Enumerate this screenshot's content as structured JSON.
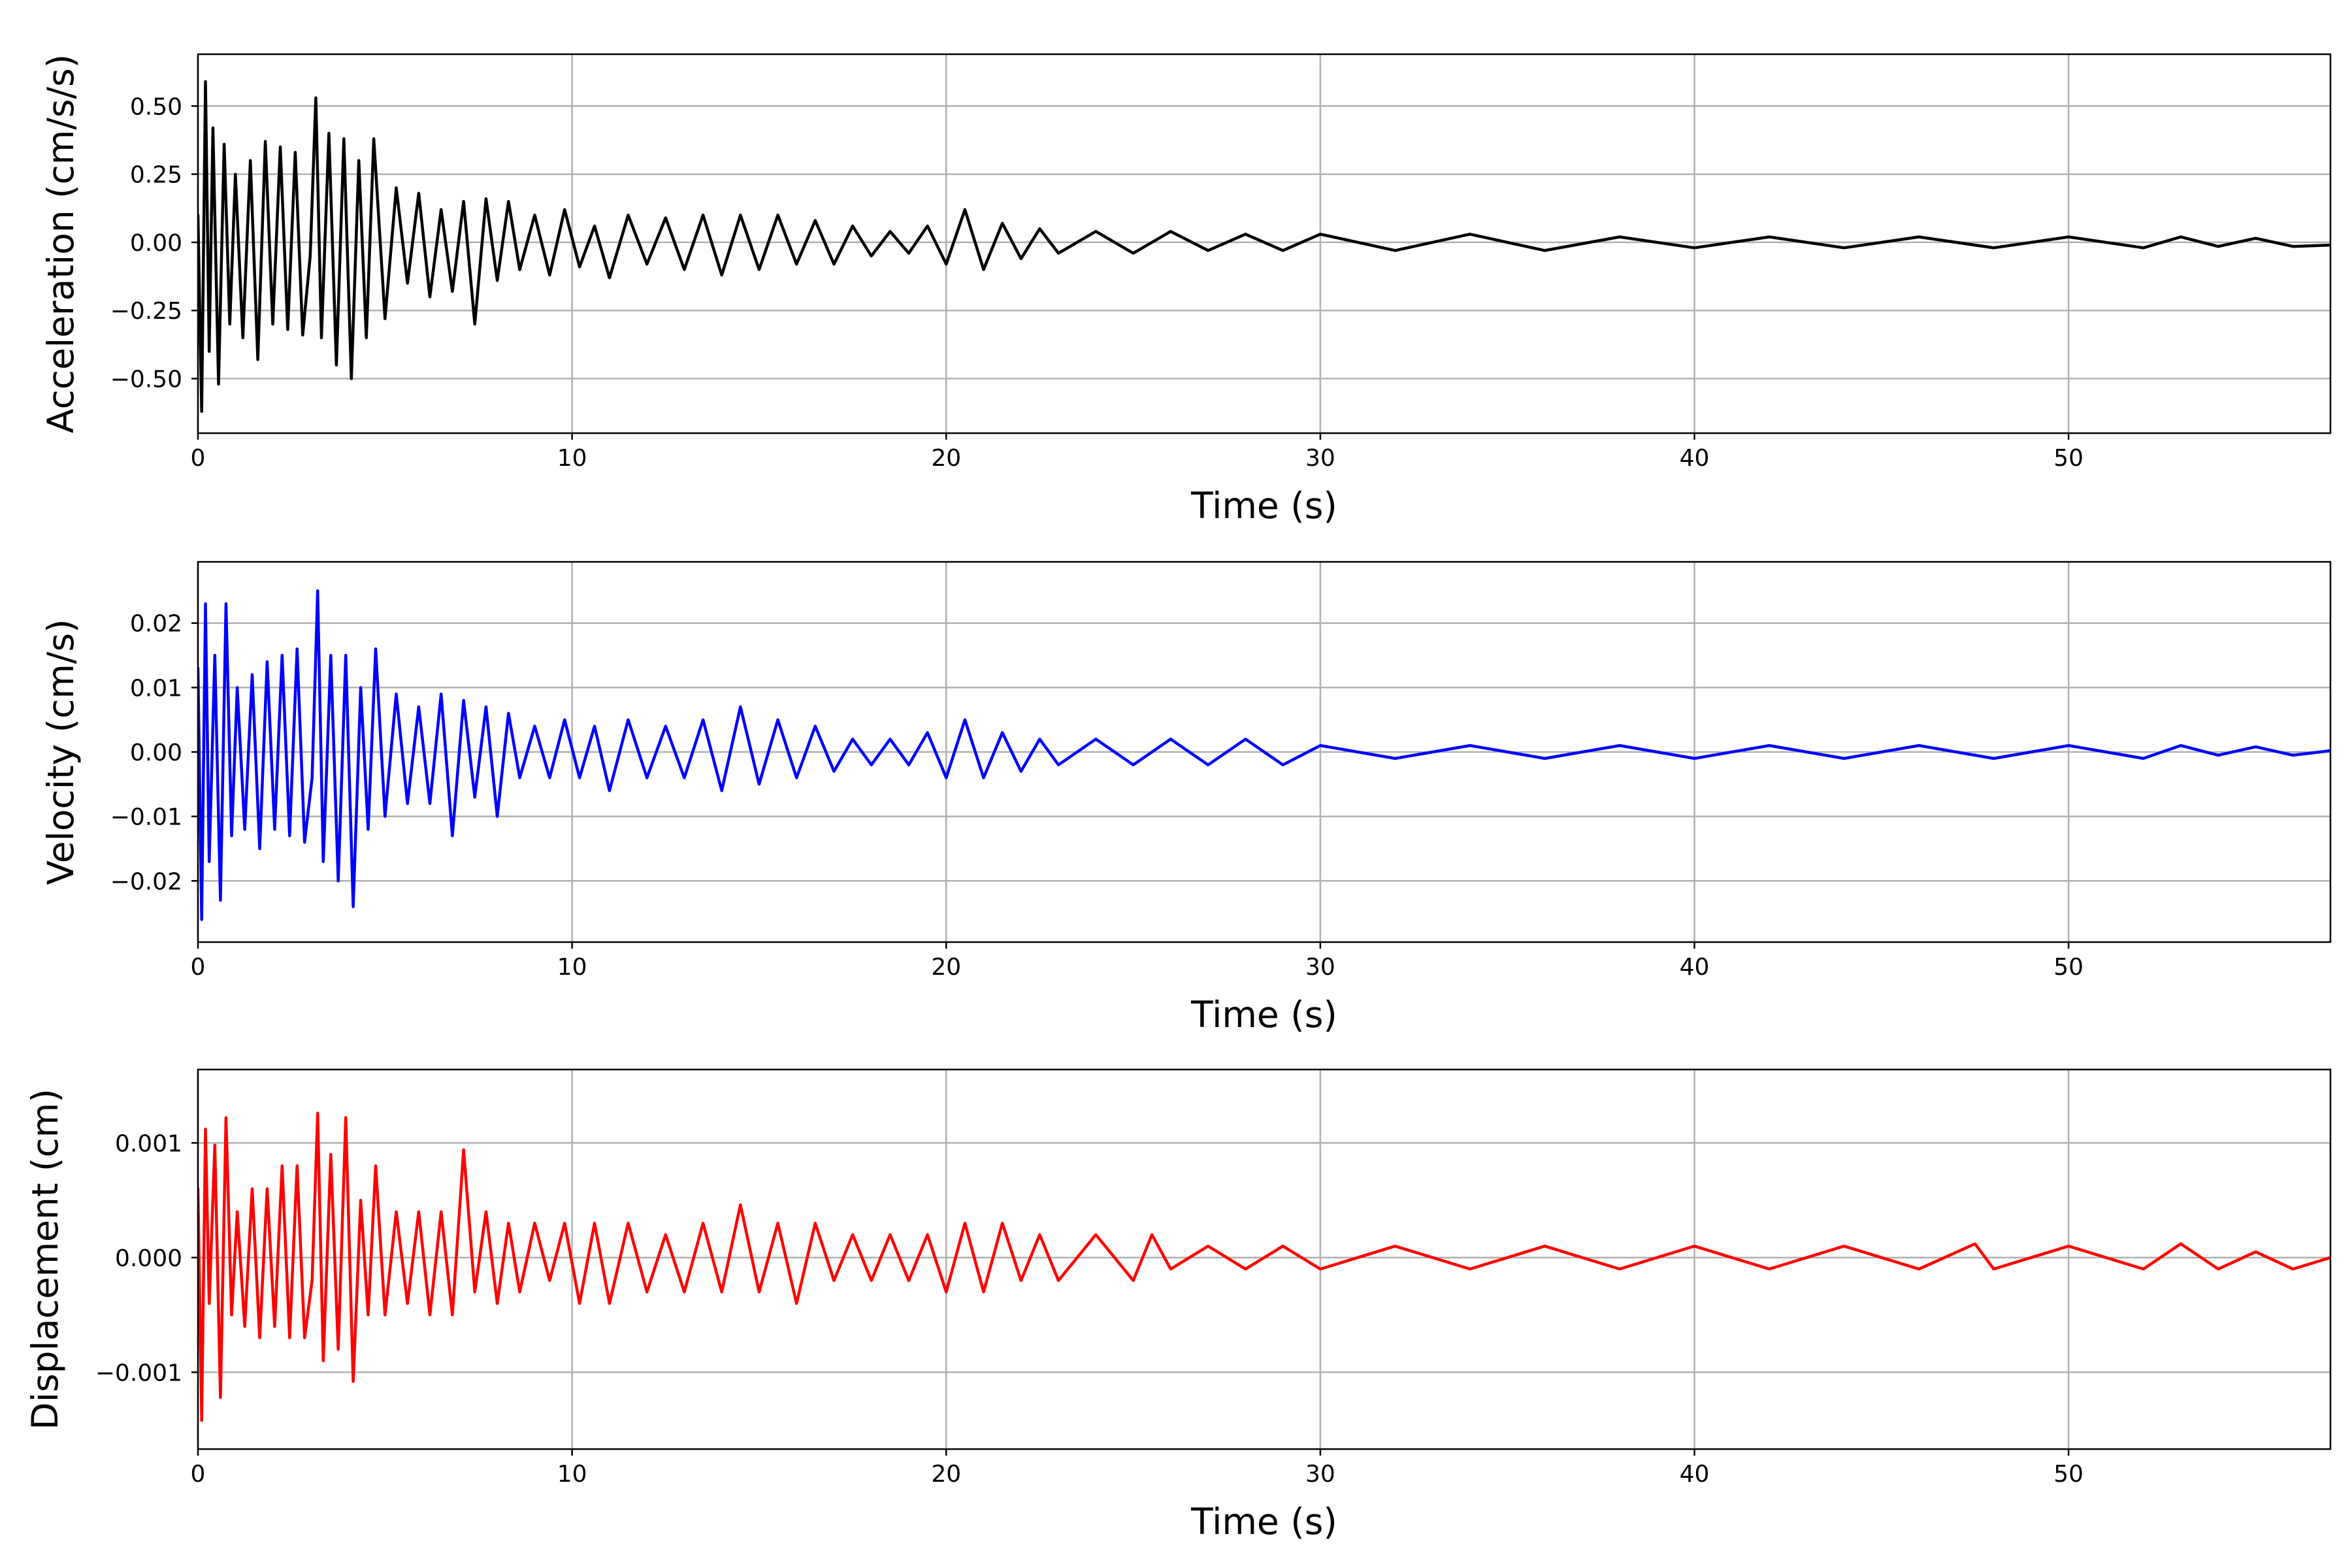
{
  "chart_data": [
    {
      "type": "line",
      "xlabel": "Time (s)",
      "ylabel": "Acceleration (cm/s/s)",
      "xlim": [
        0,
        57
      ],
      "ylim": [
        -0.7,
        0.69
      ],
      "xticks": [
        0,
        10,
        20,
        30,
        40,
        50
      ],
      "xtick_labels": [
        "0",
        "10",
        "20",
        "30",
        "40",
        "50"
      ],
      "yticks": [
        -0.5,
        -0.25,
        0,
        0.25,
        0.5
      ],
      "ytick_labels": [
        "−0.50",
        "−0.25",
        "0.00",
        "0.25",
        "0.50"
      ],
      "grid": true,
      "color": "#000000",
      "series": [
        {
          "x": [
            0.0,
            0.1,
            0.2,
            0.3,
            0.4,
            0.55,
            0.7,
            0.85,
            1.0,
            1.2,
            1.4,
            1.6,
            1.8,
            2.0,
            2.2,
            2.4,
            2.6,
            2.8,
            3.0,
            3.15,
            3.3,
            3.5,
            3.7,
            3.9,
            4.1,
            4.3,
            4.5,
            4.7,
            5.0,
            5.3,
            5.6,
            5.9,
            6.2,
            6.5,
            6.8,
            7.1,
            7.4,
            7.7,
            8.0,
            8.3,
            8.6,
            9.0,
            9.4,
            9.8,
            10.2,
            10.6,
            11.0,
            11.5,
            12.0,
            12.5,
            13.0,
            13.5,
            14.0,
            14.5,
            15.0,
            15.5,
            16.0,
            16.5,
            17.0,
            17.5,
            18.0,
            18.5,
            19.0,
            19.5,
            20.0,
            20.5,
            21.0,
            21.5,
            22.0,
            22.5,
            23.0,
            24.0,
            25.0,
            26.0,
            27.0,
            28.0,
            29.0,
            30.0,
            32.0,
            34.0,
            36.0,
            38.0,
            40.0,
            42.0,
            44.0,
            46.0,
            48.0,
            50.0,
            52.0,
            53.0,
            54.0,
            55.0,
            56.0,
            57.0
          ],
          "y": [
            0.1,
            -0.62,
            0.59,
            -0.4,
            0.42,
            -0.52,
            0.36,
            -0.3,
            0.25,
            -0.35,
            0.3,
            -0.43,
            0.37,
            -0.3,
            0.35,
            -0.32,
            0.33,
            -0.34,
            -0.05,
            0.53,
            -0.35,
            0.4,
            -0.45,
            0.38,
            -0.5,
            0.3,
            -0.35,
            0.38,
            -0.28,
            0.2,
            -0.15,
            0.18,
            -0.2,
            0.12,
            -0.18,
            0.15,
            -0.3,
            0.16,
            -0.14,
            0.15,
            -0.1,
            0.1,
            -0.12,
            0.12,
            -0.09,
            0.06,
            -0.13,
            0.1,
            -0.08,
            0.09,
            -0.1,
            0.1,
            -0.12,
            0.1,
            -0.1,
            0.1,
            -0.08,
            0.08,
            -0.08,
            0.06,
            -0.05,
            0.04,
            -0.04,
            0.06,
            -0.08,
            0.12,
            -0.1,
            0.07,
            -0.06,
            0.05,
            -0.04,
            0.04,
            -0.04,
            0.04,
            -0.03,
            0.03,
            -0.03,
            0.03,
            -0.03,
            0.03,
            -0.03,
            0.02,
            -0.02,
            0.02,
            -0.02,
            0.02,
            -0.02,
            0.02,
            -0.02,
            0.02,
            -0.015,
            0.015,
            -0.015,
            -0.01
          ]
        }
      ]
    },
    {
      "type": "line",
      "xlabel": "Time (s)",
      "ylabel": "Velocity (cm/s)",
      "xlim": [
        0,
        57
      ],
      "ylim": [
        -0.0295,
        0.0295
      ],
      "xticks": [
        0,
        10,
        20,
        30,
        40,
        50
      ],
      "xtick_labels": [
        "0",
        "10",
        "20",
        "30",
        "40",
        "50"
      ],
      "yticks": [
        -0.02,
        -0.01,
        0,
        0.01,
        0.02
      ],
      "ytick_labels": [
        "−0.02",
        "−0.01",
        "0.00",
        "0.01",
        "0.02"
      ],
      "grid": true,
      "color": "#0000ff",
      "series": [
        {
          "x": [
            0.0,
            0.1,
            0.2,
            0.3,
            0.45,
            0.6,
            0.75,
            0.9,
            1.05,
            1.25,
            1.45,
            1.65,
            1.85,
            2.05,
            2.25,
            2.45,
            2.65,
            2.85,
            3.05,
            3.2,
            3.35,
            3.55,
            3.75,
            3.95,
            4.15,
            4.35,
            4.55,
            4.75,
            5.0,
            5.3,
            5.6,
            5.9,
            6.2,
            6.5,
            6.8,
            7.1,
            7.4,
            7.7,
            8.0,
            8.3,
            8.6,
            9.0,
            9.4,
            9.8,
            10.2,
            10.6,
            11.0,
            11.5,
            12.0,
            12.5,
            13.0,
            13.5,
            14.0,
            14.5,
            15.0,
            15.5,
            16.0,
            16.5,
            17.0,
            17.5,
            18.0,
            18.5,
            19.0,
            19.5,
            20.0,
            20.5,
            21.0,
            21.5,
            22.0,
            22.5,
            23.0,
            24.0,
            25.0,
            26.0,
            27.0,
            28.0,
            29.0,
            30.0,
            32.0,
            34.0,
            36.0,
            38.0,
            40.0,
            42.0,
            44.0,
            46.0,
            48.0,
            50.0,
            52.0,
            53.0,
            54.0,
            55.0,
            56.0,
            57.0
          ],
          "y": [
            0.013,
            -0.026,
            0.023,
            -0.017,
            0.015,
            -0.023,
            0.023,
            -0.013,
            0.01,
            -0.012,
            0.012,
            -0.015,
            0.014,
            -0.012,
            0.015,
            -0.013,
            0.016,
            -0.014,
            -0.004,
            0.025,
            -0.017,
            0.015,
            -0.02,
            0.015,
            -0.024,
            0.01,
            -0.012,
            0.016,
            -0.01,
            0.009,
            -0.008,
            0.007,
            -0.008,
            0.009,
            -0.013,
            0.008,
            -0.007,
            0.007,
            -0.01,
            0.006,
            -0.004,
            0.004,
            -0.004,
            0.005,
            -0.004,
            0.004,
            -0.006,
            0.005,
            -0.004,
            0.004,
            -0.004,
            0.005,
            -0.006,
            0.007,
            -0.005,
            0.005,
            -0.004,
            0.004,
            -0.003,
            0.002,
            -0.002,
            0.002,
            -0.002,
            0.003,
            -0.004,
            0.005,
            -0.004,
            0.003,
            -0.003,
            0.002,
            -0.002,
            0.002,
            -0.002,
            0.002,
            -0.002,
            0.002,
            -0.002,
            0.001,
            -0.001,
            0.001,
            -0.001,
            0.001,
            -0.001,
            0.001,
            -0.001,
            0.001,
            -0.001,
            0.001,
            -0.001,
            0.001,
            -0.0005,
            0.0008,
            -0.0005,
            0.0002
          ]
        }
      ]
    },
    {
      "type": "line",
      "xlabel": "Time (s)",
      "ylabel": "Displacement (cm)",
      "xlim": [
        0,
        57
      ],
      "ylim": [
        -0.00167,
        0.00164
      ],
      "xticks": [
        0,
        10,
        20,
        30,
        40,
        50
      ],
      "xtick_labels": [
        "0",
        "10",
        "20",
        "30",
        "40",
        "50"
      ],
      "yticks": [
        -0.001,
        0,
        0.001
      ],
      "ytick_labels": [
        "−0.001",
        "0.000",
        "0.001"
      ],
      "grid": true,
      "color": "#ff0000",
      "series": [
        {
          "x": [
            0.0,
            0.1,
            0.2,
            0.3,
            0.45,
            0.6,
            0.75,
            0.9,
            1.05,
            1.25,
            1.45,
            1.65,
            1.85,
            2.05,
            2.25,
            2.45,
            2.65,
            2.85,
            3.05,
            3.2,
            3.35,
            3.55,
            3.75,
            3.95,
            4.15,
            4.35,
            4.55,
            4.75,
            5.0,
            5.3,
            5.6,
            5.9,
            6.2,
            6.5,
            6.8,
            7.1,
            7.4,
            7.7,
            8.0,
            8.3,
            8.6,
            9.0,
            9.4,
            9.8,
            10.2,
            10.6,
            11.0,
            11.5,
            12.0,
            12.5,
            13.0,
            13.5,
            14.0,
            14.5,
            15.0,
            15.5,
            16.0,
            16.5,
            17.0,
            17.5,
            18.0,
            18.5,
            19.0,
            19.5,
            20.0,
            20.5,
            21.0,
            21.5,
            22.0,
            22.5,
            23.0,
            24.0,
            25.0,
            25.5,
            26.0,
            27.0,
            28.0,
            29.0,
            30.0,
            32.0,
            34.0,
            36.0,
            38.0,
            40.0,
            42.0,
            44.0,
            46.0,
            47.5,
            48.0,
            50.0,
            52.0,
            53.0,
            54.0,
            55.0,
            56.0,
            57.0
          ],
          "y": [
            0.0006,
            -0.00142,
            0.00112,
            -0.0004,
            0.00098,
            -0.00122,
            0.00122,
            -0.0005,
            0.0004,
            -0.0006,
            0.0006,
            -0.0007,
            0.0006,
            -0.0006,
            0.0008,
            -0.0007,
            0.0008,
            -0.0007,
            -0.0002,
            0.00126,
            -0.0009,
            0.0009,
            -0.0008,
            0.00122,
            -0.00108,
            0.0005,
            -0.0005,
            0.0008,
            -0.0005,
            0.0004,
            -0.0004,
            0.0004,
            -0.0005,
            0.0004,
            -0.0005,
            0.00094,
            -0.0003,
            0.0004,
            -0.0004,
            0.0003,
            -0.0003,
            0.0003,
            -0.0002,
            0.0003,
            -0.0004,
            0.0003,
            -0.0004,
            0.0003,
            -0.0003,
            0.0002,
            -0.0003,
            0.0003,
            -0.0003,
            0.00046,
            -0.0003,
            0.0003,
            -0.0004,
            0.0003,
            -0.0002,
            0.0002,
            -0.0002,
            0.0002,
            -0.0002,
            0.0002,
            -0.0003,
            0.0003,
            -0.0003,
            0.0003,
            -0.0002,
            0.0002,
            -0.0002,
            0.0002,
            -0.0002,
            0.0002,
            -0.0001,
            0.0001,
            -0.0001,
            0.0001,
            -0.0001,
            0.0001,
            -0.0001,
            0.0001,
            -0.0001,
            0.0001,
            -0.0001,
            0.0001,
            -0.0001,
            0.00012,
            -0.0001,
            0.0001,
            -0.0001,
            0.00012,
            -0.0001,
            5e-05,
            -0.0001,
            0.0
          ]
        }
      ]
    }
  ]
}
